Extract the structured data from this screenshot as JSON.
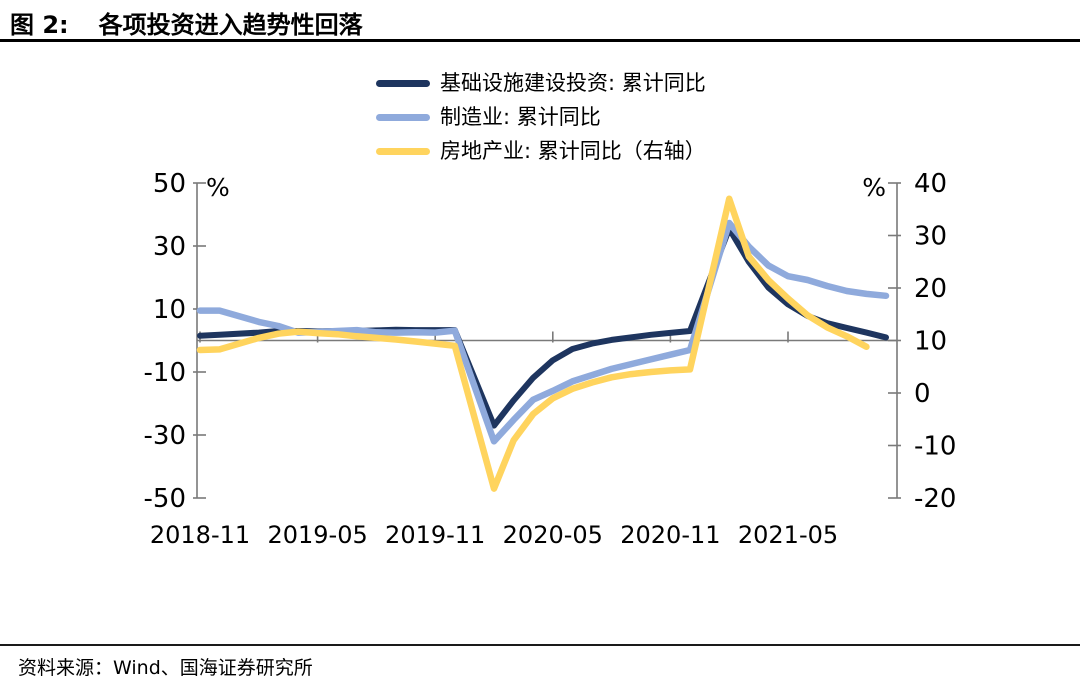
{
  "header": {
    "figure_label": "图 2:",
    "title": "各项投资进入趋势性回落"
  },
  "legend": {
    "items": [
      {
        "key": "infrastructure",
        "label": "基础设施建设投资: 累计同比",
        "color": "#1E355F"
      },
      {
        "key": "manufacturing",
        "label": "制造业: 累计同比",
        "color": "#8FAADC"
      },
      {
        "key": "real-estate",
        "label": "房地产业: 累计同比（右轴）",
        "color": "#FFD45E"
      }
    ]
  },
  "footer": {
    "source": "资料来源：Wind、国海证券研究所"
  },
  "chart_data": {
    "type": "line",
    "title": "各项投资进入趋势性回落",
    "grid": "horizontal-zero-line-only",
    "legend_position": "top-center",
    "left_axis": {
      "unit": "%",
      "min": -50,
      "max": 50,
      "ticks": [
        50,
        30,
        10,
        -10,
        -30,
        -50
      ]
    },
    "right_axis": {
      "unit": "%",
      "min": -20,
      "max": 40,
      "ticks": [
        40,
        30,
        20,
        10,
        0,
        -10,
        -20
      ]
    },
    "x_tick_labels": [
      "2018-11",
      "2019-05",
      "2019-11",
      "2020-05",
      "2020-11",
      "2021-05"
    ],
    "x_tick_month_offsets": [
      0,
      6,
      12,
      18,
      24,
      30
    ],
    "months": [
      "2018-11",
      "2018-12",
      "2019-02",
      "2019-03",
      "2019-04",
      "2019-05",
      "2019-06",
      "2019-07",
      "2019-08",
      "2019-09",
      "2019-10",
      "2019-11",
      "2019-12",
      "2020-02",
      "2020-03",
      "2020-04",
      "2020-05",
      "2020-06",
      "2020-07",
      "2020-08",
      "2020-09",
      "2020-10",
      "2020-11",
      "2020-12",
      "2021-02",
      "2021-03",
      "2021-04",
      "2021-05",
      "2021-06",
      "2021-07",
      "2021-08",
      "2021-09",
      "2021-10"
    ],
    "month_offsets": [
      0,
      1,
      3,
      4,
      5,
      6,
      7,
      8,
      9,
      10,
      11,
      12,
      13,
      15,
      16,
      17,
      18,
      19,
      20,
      21,
      22,
      23,
      24,
      25,
      27,
      28,
      29,
      30,
      31,
      32,
      33,
      34,
      35
    ],
    "series": [
      {
        "key": "infrastructure",
        "name": "基础设施建设投资: 累计同比",
        "axis": "left",
        "color": "#1E355F",
        "stroke_width": 6,
        "values": [
          1.5,
          1.8,
          2.5,
          3.0,
          3.0,
          2.9,
          3.0,
          3.0,
          3.2,
          3.4,
          3.3,
          3.3,
          3.3,
          -27.0,
          -19.0,
          -11.8,
          -6.3,
          -2.7,
          -1.0,
          0.2,
          1.0,
          1.8,
          2.4,
          3.0,
          35.5,
          25.0,
          16.8,
          11.5,
          7.8,
          5.5,
          4.0,
          2.5,
          1.0
        ]
      },
      {
        "key": "manufacturing",
        "name": "制造业: 累计同比",
        "axis": "left",
        "color": "#8FAADC",
        "stroke_width": 6.5,
        "values": [
          9.5,
          9.5,
          5.9,
          4.6,
          2.5,
          2.7,
          3.0,
          3.3,
          2.6,
          2.5,
          2.6,
          2.5,
          3.1,
          -32.0,
          -25.2,
          -18.8,
          -16.0,
          -13.0,
          -11.0,
          -9.0,
          -7.5,
          -6.0,
          -4.5,
          -3.0,
          37.3,
          29.8,
          23.8,
          20.4,
          19.2,
          17.3,
          15.7,
          14.8,
          14.2
        ]
      },
      {
        "key": "real-estate",
        "name": "房地产业: 累计同比（右轴）",
        "axis": "right",
        "color": "#FFD45E",
        "stroke_width": 6.5,
        "values": [
          8.2,
          8.3,
          10.5,
          11.3,
          11.7,
          11.4,
          11.2,
          10.8,
          10.5,
          10.2,
          9.8,
          9.4,
          9.0,
          -18.2,
          -9.0,
          -4.0,
          -1.0,
          0.8,
          2.0,
          3.0,
          3.6,
          4.0,
          4.3,
          4.5,
          37.0,
          26.0,
          21.5,
          18.0,
          14.8,
          12.5,
          10.8,
          8.8,
          null
        ]
      }
    ]
  }
}
